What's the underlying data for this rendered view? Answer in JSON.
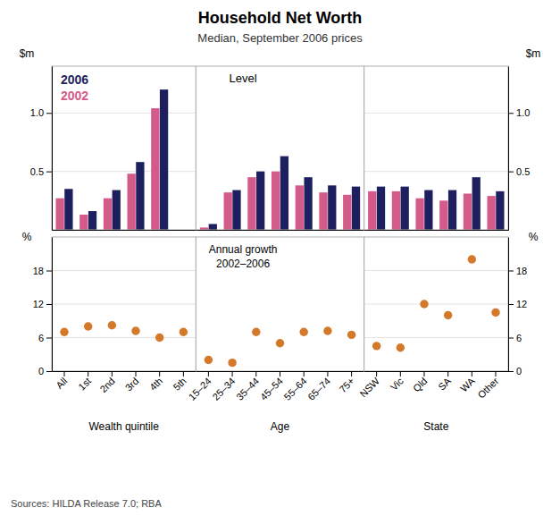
{
  "chart_data": [
    {
      "type": "bar",
      "title": "Household Net Worth",
      "subtitle": "Median, September 2006 prices",
      "source": "Sources: HILDA Release 7.0; RBA",
      "y_label": "$m",
      "categories": [
        "All",
        "1st",
        "2nd",
        "3rd",
        "4th",
        "5th"
      ],
      "series": [
        {
          "name": "2002",
          "color": "#d45a8a",
          "values": [
            0.27,
            0.13,
            0.27,
            0.48,
            1.04,
            0.0
          ]
        },
        {
          "name": "2006",
          "color": "#1e1f5e",
          "values": [
            0.35,
            0.16,
            0.34,
            0.58,
            1.2,
            0.0
          ]
        }
      ],
      "ylim": [
        0.0,
        1.4
      ],
      "yticks": [
        0.5,
        {
          "value": 1.0,
          "label": "1.0"
        }
      ],
      "grid": true,
      "legend": "upper left",
      "tick_labels": "y"
    },
    {
      "type": "scatter",
      "x_label": "Wealth quintile",
      "y_label": "%",
      "categories": [
        "All",
        "1st",
        "2nd",
        "3rd",
        "4th",
        "5th"
      ],
      "values": [
        7.0,
        8.0,
        8.2,
        7.2,
        6.0,
        7.0
      ],
      "color": "#d4782a",
      "marker": "circle",
      "ylim": [
        0.0,
        24.0
      ],
      "yticks": [
        0,
        6,
        12,
        18
      ],
      "grid": true
    },
    {
      "type": "bar",
      "annotations": [
        "Level"
      ],
      "categories": [
        "15–24",
        "25–34",
        "35–44",
        "45–54",
        "55–64",
        "65–74",
        "75+"
      ],
      "series": [
        {
          "color": "#d45a8a",
          "values": [
            0.02,
            0.32,
            0.45,
            0.5,
            0.38,
            0.32,
            0.3
          ]
        },
        {
          "color": "#1e1f5e",
          "values": [
            0.05,
            0.34,
            0.5,
            0.63,
            0.45,
            0.38,
            0.37
          ]
        }
      ],
      "ylim": [
        0.0,
        1.4
      ],
      "grid": false,
      "tick_labels": false
    },
    {
      "type": "scatter",
      "x_label": "Age",
      "annotations": [
        "Annual growth\n2002–2006"
      ],
      "categories": [
        "15–24",
        "25–34",
        "35–44",
        "45–54",
        "55–64",
        "65–74",
        "75+"
      ],
      "values": [
        2.0,
        1.5,
        7.0,
        5.0,
        7.0,
        7.2,
        6.5
      ],
      "color": "#d4782a",
      "marker": "circle",
      "ylim": [
        0.0,
        24.0
      ],
      "grid": false,
      "tick_labels": "x"
    },
    {
      "type": "bar",
      "y_label": "$m",
      "categories": [
        "NSW",
        "Vic",
        "Qld",
        "SA",
        "WA",
        "Other"
      ],
      "series": [
        {
          "color": "#d45a8a",
          "values": [
            0.33,
            0.33,
            0.27,
            0.25,
            0.31,
            0.29
          ]
        },
        {
          "color": "#1e1f5e",
          "values": [
            0.37,
            0.37,
            0.34,
            0.34,
            0.45,
            0.33
          ]
        }
      ],
      "ylim": [
        0.0,
        1.4
      ],
      "yticks": [
        0.5,
        {
          "value": 1.0,
          "label": "1.0"
        }
      ],
      "grid": true,
      "tick_labels": "y"
    },
    {
      "type": "scatter",
      "x_label": "State",
      "y_label": "%",
      "categories": [
        "NSW",
        "Vic",
        "Qld",
        "SA",
        "WA",
        "Other"
      ],
      "values": [
        4.5,
        4.2,
        12.0,
        10.0,
        20.0,
        10.5
      ],
      "color": "#d4782a",
      "marker": "circle",
      "ylim": [
        0.0,
        24.0
      ],
      "yticks": [
        0,
        6,
        12,
        18
      ],
      "grid": true
    }
  ]
}
